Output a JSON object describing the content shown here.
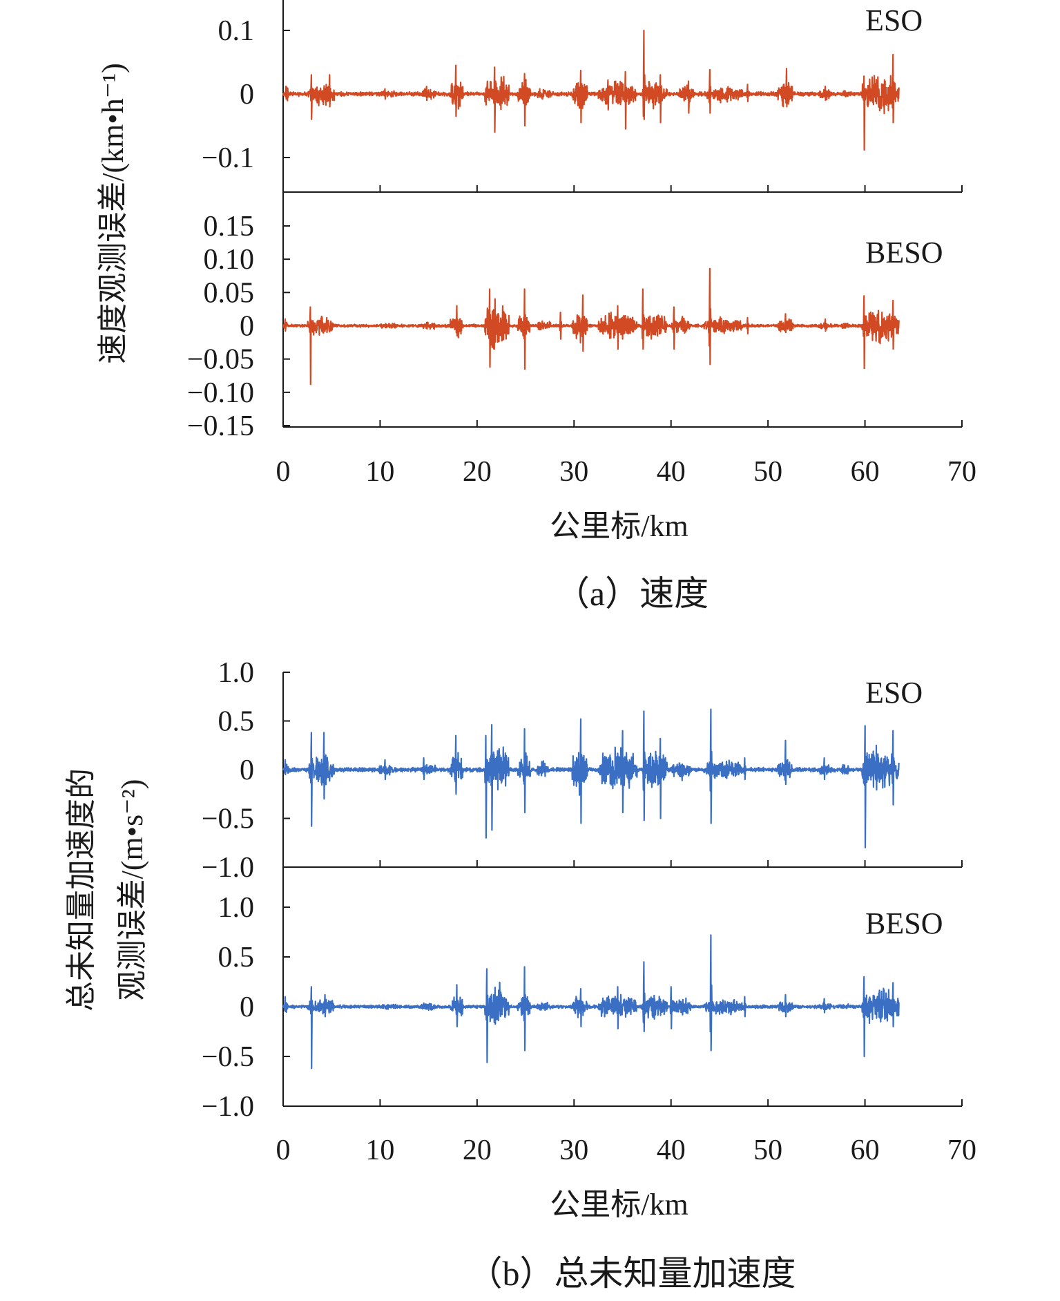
{
  "chart_data": [
    {
      "type": "line",
      "panel": "(a)",
      "caption": "（a）速度",
      "xlabel": "公里标/km",
      "ylabel": "速度观测误差/(km•h⁻¹)",
      "xlim": [
        0,
        70
      ],
      "x_ticks": [
        0,
        10,
        20,
        30,
        40,
        50,
        60,
        70
      ],
      "x_data_range": [
        0,
        63.5
      ],
      "series_color": "#d14a24",
      "subplots": [
        {
          "name": "ESO",
          "ylim": [
            -0.155,
            0.155
          ],
          "y_ticks": [
            0.1,
            0,
            -0.1
          ],
          "y_tick_labels": [
            "0.1",
            "0",
            "−0.1"
          ],
          "base_amplitude": 0.003,
          "spikes": [
            [
              0.3,
              0.012,
              -0.008
            ],
            [
              2.9,
              0.03,
              -0.04
            ],
            [
              4.8,
              0.03,
              -0.02
            ],
            [
              10.5,
              0.008,
              -0.008
            ],
            [
              14.8,
              0.012,
              -0.01
            ],
            [
              17.8,
              0.045,
              -0.035
            ],
            [
              21.8,
              0.042,
              -0.06
            ],
            [
              24.9,
              0.032,
              -0.05
            ],
            [
              30.7,
              0.037,
              -0.045
            ],
            [
              33.5,
              0.022,
              -0.025
            ],
            [
              35.3,
              0.035,
              -0.055
            ],
            [
              37.2,
              0.1,
              -0.04
            ],
            [
              38.9,
              0.03,
              -0.045
            ],
            [
              41.8,
              0.02,
              -0.03
            ],
            [
              44.0,
              0.038,
              -0.03
            ],
            [
              47.9,
              0.015,
              -0.012
            ],
            [
              51.9,
              0.04,
              -0.02
            ],
            [
              55.9,
              0.012,
              -0.01
            ],
            [
              59.9,
              0.028,
              -0.088
            ],
            [
              62.9,
              0.062,
              -0.045
            ]
          ],
          "activity": [
            [
              0.2,
              0.6,
              0.02
            ],
            [
              2.6,
              5.3,
              0.018
            ],
            [
              9.8,
              11.8,
              0.006
            ],
            [
              14.2,
              15.8,
              0.008
            ],
            [
              17.2,
              18.6,
              0.025
            ],
            [
              20.8,
              23.3,
              0.03
            ],
            [
              24.2,
              25.5,
              0.02
            ],
            [
              26.2,
              27.6,
              0.01
            ],
            [
              29.8,
              31.4,
              0.022
            ],
            [
              32.5,
              36.5,
              0.02
            ],
            [
              37.0,
              39.6,
              0.022
            ],
            [
              40.8,
              42.4,
              0.012
            ],
            [
              43.4,
              47.4,
              0.012
            ],
            [
              51.0,
              52.6,
              0.02
            ],
            [
              55.2,
              56.6,
              0.008
            ],
            [
              57.4,
              58.4,
              0.006
            ],
            [
              59.7,
              63.5,
              0.028
            ]
          ]
        },
        {
          "name": "BESO",
          "ylim": [
            -0.155,
            0.155
          ],
          "y_ticks": [
            0.15,
            0.1,
            0.05,
            0,
            -0.05,
            -0.1,
            -0.15
          ],
          "y_tick_labels": [
            "0.15",
            "0.10",
            "0.05",
            "0",
            "−0.05",
            "−0.10",
            "−0.15"
          ],
          "base_amplitude": 0.002,
          "spikes": [
            [
              0.2,
              0.01,
              -0.008
            ],
            [
              2.8,
              0.028,
              -0.088
            ],
            [
              4.5,
              0.012,
              -0.01
            ],
            [
              17.9,
              0.03,
              -0.015
            ],
            [
              21.3,
              0.055,
              -0.062
            ],
            [
              24.9,
              0.055,
              -0.065
            ],
            [
              28.6,
              0.02,
              -0.02
            ],
            [
              30.9,
              0.046,
              -0.038
            ],
            [
              34.5,
              0.03,
              -0.035
            ],
            [
              37.1,
              0.055,
              -0.035
            ],
            [
              40.3,
              0.028,
              -0.035
            ],
            [
              44.0,
              0.086,
              -0.058
            ],
            [
              47.9,
              0.012,
              -0.012
            ],
            [
              51.8,
              0.018,
              -0.01
            ],
            [
              55.9,
              0.01,
              -0.008
            ],
            [
              59.9,
              0.045,
              -0.064
            ],
            [
              62.9,
              0.038,
              -0.035
            ]
          ],
          "activity": [
            [
              0.1,
              0.5,
              0.008
            ],
            [
              2.5,
              5.3,
              0.014
            ],
            [
              9.8,
              11.8,
              0.004
            ],
            [
              14.2,
              15.8,
              0.006
            ],
            [
              17.2,
              18.6,
              0.016
            ],
            [
              20.8,
              23.3,
              0.035
            ],
            [
              24.2,
              25.5,
              0.018
            ],
            [
              26.2,
              27.6,
              0.008
            ],
            [
              29.8,
              31.4,
              0.022
            ],
            [
              32.5,
              36.5,
              0.02
            ],
            [
              37.0,
              39.6,
              0.018
            ],
            [
              40.0,
              42.0,
              0.014
            ],
            [
              43.4,
              47.4,
              0.012
            ],
            [
              51.0,
              52.6,
              0.012
            ],
            [
              55.2,
              56.6,
              0.005
            ],
            [
              57.4,
              58.4,
              0.004
            ],
            [
              59.7,
              63.5,
              0.025
            ]
          ]
        }
      ]
    },
    {
      "type": "line",
      "panel": "(b)",
      "caption": "（b）总未知量加速度",
      "xlabel": "公里标/km",
      "ylabel_lines": [
        "总未知量加速度的",
        "观测误差/(m•s⁻²)"
      ],
      "xlim": [
        0,
        70
      ],
      "x_ticks": [
        0,
        10,
        20,
        30,
        40,
        50,
        60,
        70
      ],
      "x_data_range": [
        0,
        63.5
      ],
      "series_color": "#3a6fc4",
      "subplots": [
        {
          "name": "ESO",
          "ylim": [
            -1.0,
            1.0
          ],
          "y_ticks": [
            1.0,
            0.5,
            0,
            -0.5,
            -1.0
          ],
          "y_tick_labels": [
            "1.0",
            "0.5",
            "0",
            "−0.5",
            "−1.0"
          ],
          "base_amplitude": 0.02,
          "spikes": [
            [
              0.2,
              0.1,
              -0.05
            ],
            [
              2.9,
              0.38,
              -0.58
            ],
            [
              4.2,
              0.38,
              -0.3
            ],
            [
              10.5,
              0.1,
              -0.1
            ],
            [
              14.5,
              0.12,
              -0.1
            ],
            [
              17.8,
              0.35,
              -0.25
            ],
            [
              20.9,
              0.35,
              -0.7
            ],
            [
              21.5,
              0.46,
              -0.62
            ],
            [
              24.9,
              0.42,
              -0.44
            ],
            [
              30.7,
              0.52,
              -0.55
            ],
            [
              35.0,
              0.4,
              -0.44
            ],
            [
              37.2,
              0.6,
              -0.52
            ],
            [
              38.9,
              0.32,
              -0.5
            ],
            [
              44.1,
              0.62,
              -0.55
            ],
            [
              47.6,
              0.12,
              -0.1
            ],
            [
              51.8,
              0.3,
              -0.15
            ],
            [
              55.8,
              0.12,
              -0.1
            ],
            [
              60.0,
              0.45,
              -0.8
            ],
            [
              62.9,
              0.4,
              -0.36
            ]
          ],
          "activity": [
            [
              0.1,
              0.6,
              0.08
            ],
            [
              2.6,
              5.3,
              0.16
            ],
            [
              9.8,
              11.8,
              0.05
            ],
            [
              14.2,
              15.8,
              0.06
            ],
            [
              17.2,
              18.6,
              0.16
            ],
            [
              20.8,
              23.3,
              0.25
            ],
            [
              24.2,
              25.5,
              0.15
            ],
            [
              26.2,
              27.6,
              0.08
            ],
            [
              29.8,
              31.4,
              0.22
            ],
            [
              32.5,
              36.5,
              0.22
            ],
            [
              37.0,
              39.6,
              0.2
            ],
            [
              40.0,
              42.0,
              0.1
            ],
            [
              43.4,
              47.4,
              0.1
            ],
            [
              51.0,
              52.6,
              0.1
            ],
            [
              55.2,
              56.6,
              0.06
            ],
            [
              57.4,
              58.4,
              0.05
            ],
            [
              59.7,
              63.5,
              0.22
            ]
          ]
        },
        {
          "name": "BESO",
          "ylim": [
            -1.0,
            1.0
          ],
          "y_ticks": [
            1.0,
            0.5,
            0,
            -0.5,
            -1.0
          ],
          "y_tick_labels": [
            "1.0",
            "0.5",
            "0",
            "−0.5",
            "−1.0"
          ],
          "base_amplitude": 0.015,
          "spikes": [
            [
              0.2,
              0.1,
              -0.05
            ],
            [
              2.9,
              0.2,
              -0.62
            ],
            [
              4.3,
              0.12,
              -0.1
            ],
            [
              17.9,
              0.22,
              -0.2
            ],
            [
              21.0,
              0.38,
              -0.56
            ],
            [
              24.9,
              0.4,
              -0.44
            ],
            [
              30.7,
              0.18,
              -0.2
            ],
            [
              34.5,
              0.2,
              -0.22
            ],
            [
              37.2,
              0.45,
              -0.25
            ],
            [
              40.0,
              0.2,
              -0.22
            ],
            [
              44.1,
              0.72,
              -0.44
            ],
            [
              47.6,
              0.1,
              -0.1
            ],
            [
              51.8,
              0.12,
              -0.1
            ],
            [
              55.8,
              0.08,
              -0.06
            ],
            [
              59.9,
              0.3,
              -0.5
            ],
            [
              62.9,
              0.24,
              -0.2
            ]
          ],
          "activity": [
            [
              0.1,
              0.5,
              0.05
            ],
            [
              2.5,
              5.3,
              0.08
            ],
            [
              9.8,
              11.8,
              0.03
            ],
            [
              14.2,
              15.8,
              0.04
            ],
            [
              17.2,
              18.6,
              0.1
            ],
            [
              20.8,
              23.3,
              0.22
            ],
            [
              24.2,
              25.5,
              0.12
            ],
            [
              26.2,
              27.6,
              0.05
            ],
            [
              29.8,
              31.4,
              0.1
            ],
            [
              32.5,
              36.5,
              0.12
            ],
            [
              37.0,
              39.6,
              0.12
            ],
            [
              40.0,
              42.0,
              0.1
            ],
            [
              43.4,
              47.4,
              0.08
            ],
            [
              51.0,
              52.6,
              0.06
            ],
            [
              55.2,
              56.6,
              0.04
            ],
            [
              57.4,
              58.4,
              0.03
            ],
            [
              59.7,
              63.5,
              0.18
            ]
          ]
        }
      ]
    }
  ]
}
